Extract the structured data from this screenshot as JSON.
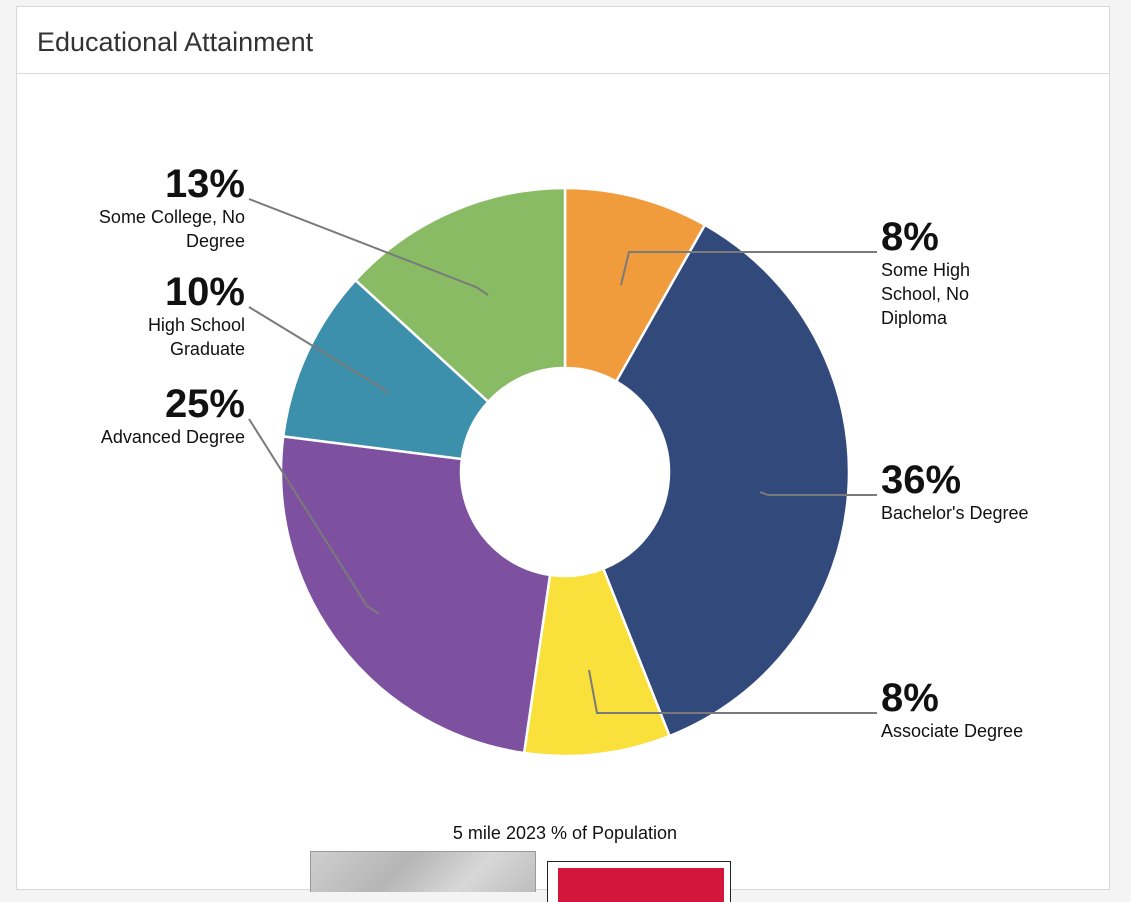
{
  "panel": {
    "title": "Educational Attainment"
  },
  "chart_data": {
    "type": "pie",
    "donut": true,
    "caption": "5 mile 2023 % of Population",
    "slices": [
      {
        "label": "Some High School, No Diploma",
        "lines": [
          "Some High",
          "School, No",
          "Diploma"
        ],
        "pct_label": "8%",
        "value": 8.2,
        "color": "#F09C3D"
      },
      {
        "label": "Bachelor's Degree",
        "lines": [
          "Bachelor's Degree"
        ],
        "pct_label": "36%",
        "value": 35.8,
        "color": "#314A7B"
      },
      {
        "label": "Associate Degree",
        "lines": [
          "Associate Degree"
        ],
        "pct_label": "8%",
        "value": 8.3,
        "color": "#F9E03B"
      },
      {
        "label": "Advanced Degree",
        "lines": [
          "Advanced Degree"
        ],
        "pct_label": "25%",
        "value": 24.7,
        "color": "#7E50A0"
      },
      {
        "label": "High School Graduate",
        "lines": [
          "High School",
          "Graduate"
        ],
        "pct_label": "10%",
        "value": 9.8,
        "color": "#3C90AC"
      },
      {
        "label": "Some College, No Degree",
        "lines": [
          "Some College, No",
          "Degree"
        ],
        "pct_label": "13%",
        "value": 13.2,
        "color": "#88BB64"
      }
    ]
  }
}
